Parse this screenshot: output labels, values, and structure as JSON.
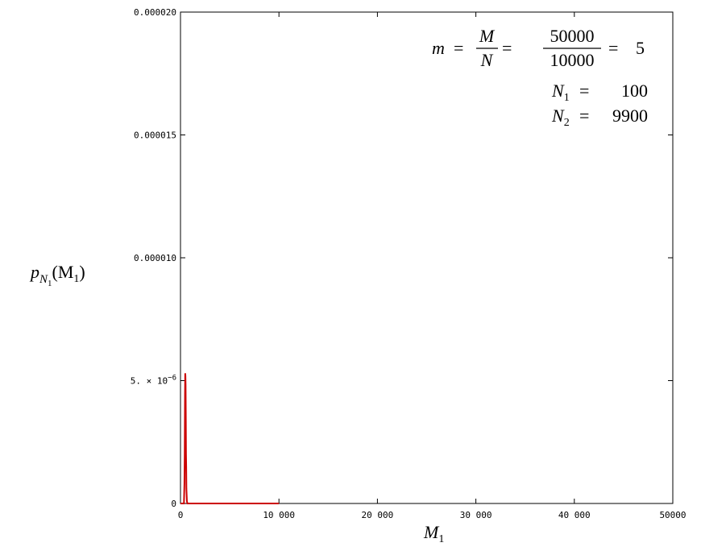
{
  "chart_data": {
    "type": "line",
    "x_label": {
      "base": "M",
      "sub": "1"
    },
    "y_label": {
      "base": "p",
      "sub": "N",
      "subsub": "1",
      "open": "(M",
      "inner_sub": "1",
      "close": ")"
    },
    "annotations": {
      "m": "m",
      "equals": "=",
      "M": "M",
      "N": "N",
      "numerator": "50000",
      "denominator": "10000",
      "result": "5",
      "N1_base": "N",
      "N1_sub": "1",
      "N1_value": "100",
      "N2_base": "N",
      "N2_sub": "2",
      "N2_value": "9900"
    },
    "x": [
      0,
      350,
      400,
      430,
      460,
      480,
      500,
      520,
      540,
      560,
      580,
      600,
      650,
      700,
      10000
    ],
    "series": [
      {
        "name": "p",
        "color": "#cc0000",
        "values": [
          0,
          0,
          8e-07,
          2e-06,
          4.5e-06,
          5.3e-06,
          5.2e-06,
          4.8e-06,
          3.5e-06,
          2e-06,
          1.5e-06,
          6e-07,
          1e-07,
          0,
          0
        ]
      }
    ],
    "xlim": [
      0,
      50000
    ],
    "ylim": [
      0,
      2e-05
    ],
    "xticks": [
      0,
      {
        "value": 10000,
        "label": "10 000"
      },
      {
        "value": 20000,
        "label": "20 000"
      },
      {
        "value": 30000,
        "label": "30 000"
      },
      {
        "value": 40000,
        "label": "40 000"
      },
      {
        "value": 50000,
        "label": "50000"
      }
    ],
    "yticks": [
      0,
      {
        "value": 5e-06,
        "label": "5. × 10",
        "exponent": "−6"
      },
      {
        "value": 1e-05,
        "label": "0.000010"
      },
      1.5e-05,
      {
        "value": 2e-05,
        "label": "0.000020"
      }
    ],
    "grid": false
  }
}
